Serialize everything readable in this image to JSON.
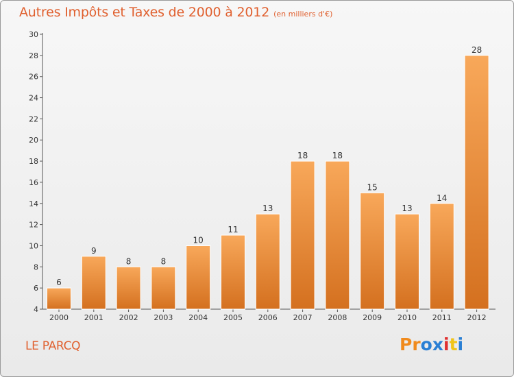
{
  "header": {
    "title": "Autres Impôts et Taxes de 2000 à 2012",
    "unit": "(en milliers d'€)"
  },
  "footer": {
    "commune": "LE PARCQ",
    "logo": "Proxiti"
  },
  "colors": {
    "title": "#e0602f",
    "bar_light": "#f8a85a",
    "bar_dark": "#d4701f",
    "logo_letters": [
      "#f08a1c",
      "#f08a1c",
      "#2a7fd4",
      "#2a7fd4",
      "#e02f2f",
      "#f0c419",
      "#2a7fd4"
    ]
  },
  "chart_data": {
    "type": "bar",
    "title": "Autres Impôts et Taxes de 2000 à 2012",
    "subtitle": "(en milliers d'€)",
    "categories": [
      "2000",
      "2001",
      "2002",
      "2003",
      "2004",
      "2005",
      "2006",
      "2007",
      "2008",
      "2009",
      "2010",
      "2011",
      "2012"
    ],
    "values": [
      6,
      9,
      8,
      8,
      10,
      11,
      13,
      18,
      18,
      15,
      13,
      14,
      28
    ],
    "ylim": [
      4,
      30
    ],
    "yticks": [
      4,
      6,
      8,
      10,
      12,
      14,
      16,
      18,
      20,
      22,
      24,
      26,
      28,
      30
    ],
    "grid": false,
    "legend": "none",
    "data_labels": true
  }
}
